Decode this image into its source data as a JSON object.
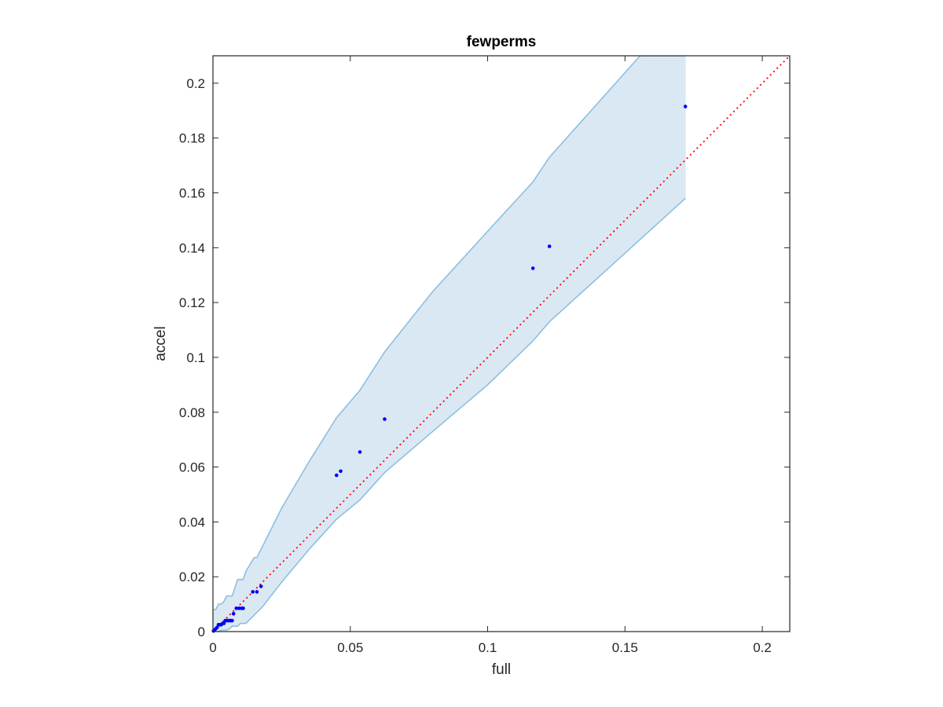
{
  "chart_data": {
    "type": "scatter",
    "title": "fewperms",
    "xlabel": "full",
    "ylabel": "accel",
    "xlim": [
      0,
      0.21
    ],
    "ylim": [
      0,
      0.21
    ],
    "xticks": [
      0,
      0.05,
      0.1,
      0.15,
      0.2
    ],
    "xtick_labels": [
      "0",
      "0.05",
      "0.1",
      "0.15",
      "0.2"
    ],
    "yticks": [
      0,
      0.02,
      0.04,
      0.06,
      0.08,
      0.1,
      0.12,
      0.14,
      0.16,
      0.18,
      0.2
    ],
    "ytick_labels": [
      "0",
      "0.02",
      "0.04",
      "0.06",
      "0.08",
      "0.1",
      "0.12",
      "0.14",
      "0.16",
      "0.18",
      "0.2"
    ],
    "grid": false,
    "colors": {
      "points": "#0000ff",
      "band_fill": "#dae8f4",
      "band_edge": "#8cbfe0",
      "reference_line": "#ff0000",
      "axes": "#262626"
    },
    "series": [
      {
        "type": "scatter",
        "x": [
          0.0002,
          0.0005,
          0.001,
          0.0015,
          0.002,
          0.0025,
          0.003,
          0.0035,
          0.004,
          0.0045,
          0.005,
          0.0055,
          0.006,
          0.0065,
          0.007,
          0.0075,
          0.0085,
          0.0095,
          0.0105,
          0.011,
          0.0145,
          0.016,
          0.0175,
          0.045,
          0.0465,
          0.0535,
          0.0625,
          0.1165,
          0.1225,
          0.172
        ],
        "y": [
          0.0002,
          0.0005,
          0.001,
          0.0015,
          0.0025,
          0.0025,
          0.0025,
          0.003,
          0.003,
          0.004,
          0.004,
          0.004,
          0.004,
          0.004,
          0.004,
          0.0065,
          0.0085,
          0.0085,
          0.0085,
          0.0085,
          0.0145,
          0.0145,
          0.0165,
          0.057,
          0.0585,
          0.0655,
          0.0775,
          0.1325,
          0.1405,
          0.1915
        ]
      },
      {
        "type": "band",
        "upper": {
          "x": [
            0,
            0.001,
            0.002,
            0.003,
            0.004,
            0.005,
            0.007,
            0.008,
            0.009,
            0.011,
            0.012,
            0.015,
            0.016,
            0.017,
            0.025,
            0.035,
            0.045,
            0.0535,
            0.0625,
            0.08,
            0.1,
            0.1165,
            0.1225,
            0.1555,
            0.172
          ],
          "y": [
            0.008,
            0.008,
            0.01,
            0.01,
            0.011,
            0.013,
            0.013,
            0.016,
            0.019,
            0.019,
            0.022,
            0.027,
            0.027,
            0.029,
            0.045,
            0.062,
            0.078,
            0.088,
            0.102,
            0.124,
            0.146,
            0.164,
            0.173,
            0.21,
            0.21
          ]
        },
        "lower": {
          "x": [
            0,
            0.002,
            0.003,
            0.005,
            0.006,
            0.007,
            0.009,
            0.01,
            0.012,
            0.017,
            0.018,
            0.025,
            0.035,
            0.045,
            0.0535,
            0.0625,
            0.08,
            0.1,
            0.1165,
            0.1225,
            0.172
          ],
          "y": [
            0,
            0,
            0.0005,
            0.0005,
            0.001,
            0.002,
            0.002,
            0.003,
            0.003,
            0.008,
            0.009,
            0.018,
            0.03,
            0.041,
            0.048,
            0.058,
            0.073,
            0.09,
            0.106,
            0.113,
            0.158
          ]
        }
      },
      {
        "type": "reference-line",
        "x": [
          0,
          0.21
        ],
        "y": [
          0,
          0.21
        ]
      }
    ]
  }
}
